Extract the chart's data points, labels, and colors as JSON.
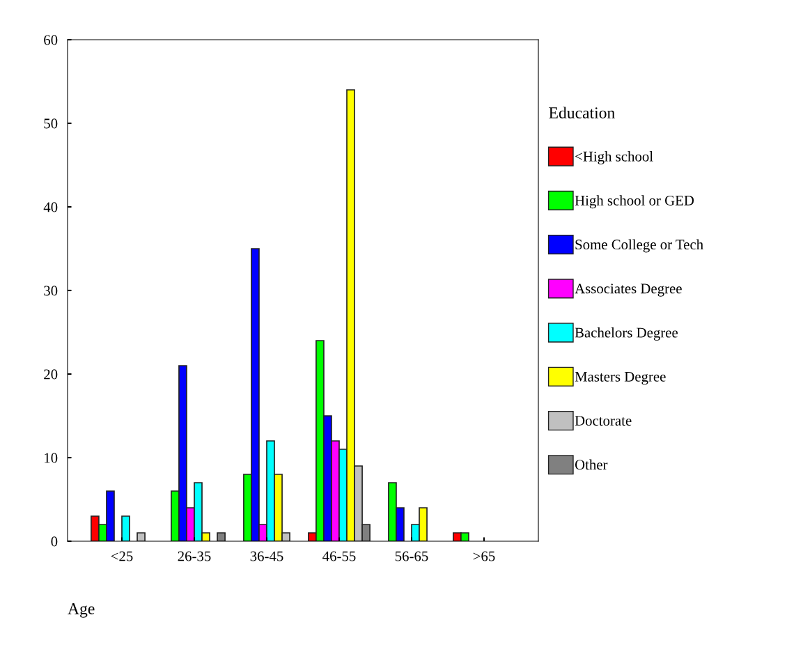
{
  "chart_data": {
    "type": "bar",
    "xlabel": "Age",
    "legend_title": "Education",
    "legend": "right",
    "grid": false,
    "categories": [
      "<25",
      "26-35",
      "36-45",
      "46-55",
      "56-65",
      ">65"
    ],
    "ylim": [
      0,
      60
    ],
    "yticks": [
      0,
      10,
      20,
      30,
      40,
      50,
      60
    ],
    "series": [
      {
        "name": "<High school",
        "color": "#ff0000",
        "values": [
          3,
          0,
          0,
          1,
          0,
          1
        ]
      },
      {
        "name": "High school or GED",
        "color": "#00ff00",
        "values": [
          2,
          6,
          8,
          24,
          7,
          1
        ]
      },
      {
        "name": "Some College or Tech",
        "color": "#0000ff",
        "values": [
          6,
          21,
          35,
          15,
          4,
          0
        ]
      },
      {
        "name": "Associates Degree",
        "color": "#ff00ff",
        "values": [
          0,
          4,
          2,
          12,
          0,
          0
        ]
      },
      {
        "name": "Bachelors Degree",
        "color": "#00ffff",
        "values": [
          3,
          7,
          12,
          11,
          2,
          0
        ]
      },
      {
        "name": "Masters Degree",
        "color": "#ffff00",
        "values": [
          0,
          1,
          8,
          54,
          4,
          0
        ]
      },
      {
        "name": "Doctorate",
        "color": "#c0c0c0",
        "values": [
          1,
          0,
          1,
          9,
          0,
          0
        ]
      },
      {
        "name": "Other",
        "color": "#808080",
        "values": [
          0,
          1,
          0,
          2,
          0,
          0
        ]
      }
    ]
  }
}
